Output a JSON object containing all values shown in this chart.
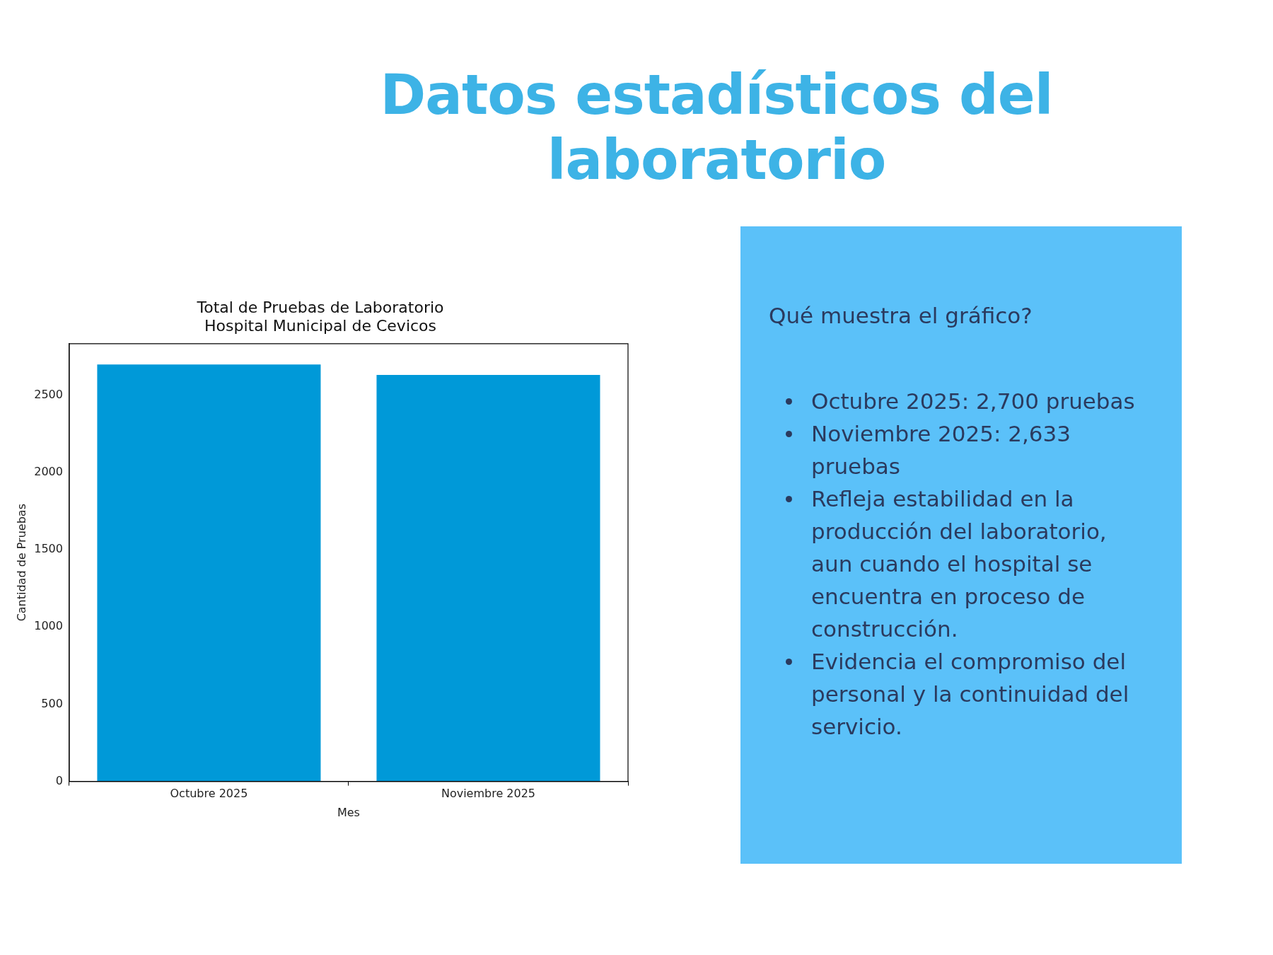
{
  "chart_data": [
    {
      "type": "other",
      "title": "Datos estadísticos del laboratorio"
    },
    {
      "type": "bar",
      "title": "Total de Pruebas de Laboratorio",
      "subtitle": "Hospital Municipal de Cevicos",
      "xlabel": "Mes",
      "ylabel": "Cantidad de Pruebas",
      "categories": [
        "Octubre 2025",
        "Noviembre 2025"
      ],
      "values": [
        2700,
        2633
      ],
      "color": "#0099d8",
      "ylim": [
        0,
        2835
      ],
      "yticks": [
        0,
        500,
        1000,
        1500,
        2000,
        2500
      ],
      "grid": false,
      "legend": false
    },
    {
      "type": "other",
      "title": "Qué muestra el gráfico?",
      "annotations": [
        "Octubre 2025: 2,700 pruebas",
        "Noviembre 2025: 2,633 pruebas",
        "Refleja estabilidad en la producción del laboratorio, aun cuando el hospital se encuentra en proceso de construcción.",
        "Evidencia el compromiso del personal y la continuidad del servicio."
      ]
    }
  ]
}
